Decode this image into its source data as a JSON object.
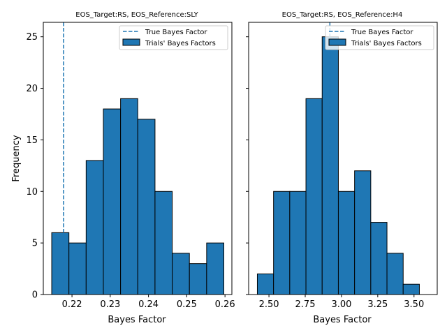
{
  "chart_data": [
    {
      "type": "bar",
      "subtype": "histogram",
      "title": "EOS_Target:RS, EOS_Reference:SLY",
      "xlabel": "Bayes Factor",
      "ylabel": "Frequency",
      "xlim": [
        0.2125,
        0.2618
      ],
      "ylim": [
        0,
        26.4
      ],
      "xticks": [
        0.22,
        0.23,
        0.24,
        0.25,
        0.26
      ],
      "xtick_labels": [
        "0.22",
        "0.23",
        "0.24",
        "0.25",
        "0.26"
      ],
      "yticks": [
        0,
        5,
        10,
        15,
        20,
        25
      ],
      "ytick_labels": [
        "0",
        "5",
        "10",
        "15",
        "20",
        "25"
      ],
      "bins": [
        {
          "start": 0.2147,
          "end": 0.2192,
          "count": 6
        },
        {
          "start": 0.2192,
          "end": 0.2237,
          "count": 5
        },
        {
          "start": 0.2237,
          "end": 0.2282,
          "count": 13
        },
        {
          "start": 0.2282,
          "end": 0.2327,
          "count": 18
        },
        {
          "start": 0.2327,
          "end": 0.2372,
          "count": 19
        },
        {
          "start": 0.2372,
          "end": 0.2417,
          "count": 17
        },
        {
          "start": 0.2417,
          "end": 0.2462,
          "count": 10
        },
        {
          "start": 0.2462,
          "end": 0.2507,
          "count": 4
        },
        {
          "start": 0.2507,
          "end": 0.2552,
          "count": 3
        },
        {
          "start": 0.2552,
          "end": 0.2597,
          "count": 5
        }
      ],
      "true_bayes_factor": 0.2178,
      "legend": {
        "position": "top-right",
        "entries": [
          "True Bayes Factor",
          "Trials' Bayes Factors"
        ]
      },
      "colors": {
        "bar": "#1f77b4",
        "edge": "#000000",
        "line": "#1f77b4"
      }
    },
    {
      "type": "bar",
      "subtype": "histogram",
      "title": "EOS_Target:RS, EOS_Reference:H4",
      "xlabel": "Bayes Factor",
      "ylabel": "",
      "xlim": [
        2.36,
        3.66
      ],
      "ylim": [
        0,
        26.4
      ],
      "xticks": [
        2.5,
        2.75,
        3.0,
        3.25,
        3.5
      ],
      "xtick_labels": [
        "2.50",
        "2.75",
        "3.00",
        "3.25",
        "3.50"
      ],
      "yticks": [
        0,
        5,
        10,
        15,
        20,
        25
      ],
      "ytick_labels": [
        "",
        "",
        "",
        "",
        "",
        ""
      ],
      "bins": [
        {
          "start": 2.42,
          "end": 2.5317,
          "count": 2
        },
        {
          "start": 2.5317,
          "end": 2.6434,
          "count": 10
        },
        {
          "start": 2.6434,
          "end": 2.7551,
          "count": 10
        },
        {
          "start": 2.7551,
          "end": 2.8668,
          "count": 19
        },
        {
          "start": 2.8668,
          "end": 2.9785,
          "count": 25
        },
        {
          "start": 2.9785,
          "end": 3.0902,
          "count": 10
        },
        {
          "start": 3.0902,
          "end": 3.2019,
          "count": 12
        },
        {
          "start": 3.2019,
          "end": 3.3136,
          "count": 7
        },
        {
          "start": 3.3136,
          "end": 3.4253,
          "count": 4
        },
        {
          "start": 3.4253,
          "end": 3.537,
          "count": 1
        }
      ],
      "true_bayes_factor": 2.92,
      "legend": {
        "position": "top-right",
        "entries": [
          "True Bayes Factor",
          "Trials' Bayes Factors"
        ]
      },
      "colors": {
        "bar": "#1f77b4",
        "edge": "#000000",
        "line": "#1f77b4"
      }
    }
  ]
}
